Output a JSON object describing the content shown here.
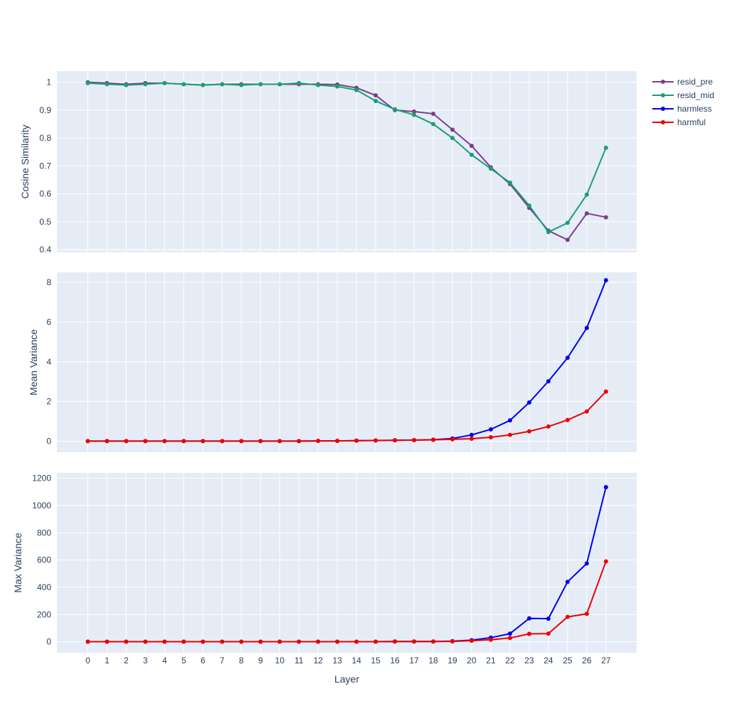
{
  "chart_data": {
    "type": "line",
    "x": [
      0,
      1,
      2,
      3,
      4,
      5,
      6,
      7,
      8,
      9,
      10,
      11,
      12,
      13,
      14,
      15,
      16,
      17,
      18,
      19,
      20,
      21,
      22,
      23,
      24,
      25,
      26,
      27
    ],
    "xlabel": "Layer",
    "legend_position": "top-right",
    "grid": true,
    "subplots": [
      {
        "ylabel": "Cosine Similarity",
        "ylim": [
          0.39,
          1.04
        ],
        "yticks": [
          0.4,
          0.5,
          0.6,
          0.7,
          0.8,
          0.9,
          1
        ],
        "ytick_labels": [
          "0.4",
          "0.5",
          "0.6",
          "0.7",
          "0.8",
          "0.9",
          "1"
        ],
        "series": [
          {
            "name": "resid_pre",
            "color": "#7b3f8c",
            "values": [
              1.0,
              0.997,
              0.993,
              0.997,
              0.997,
              0.993,
              0.99,
              0.993,
              0.993,
              0.993,
              0.993,
              0.993,
              0.993,
              0.992,
              0.98,
              0.953,
              0.9,
              0.895,
              0.887,
              0.83,
              0.772,
              0.695,
              0.635,
              0.55,
              0.468,
              0.435,
              0.53,
              0.516
            ]
          },
          {
            "name": "resid_mid",
            "color": "#1b9e77",
            "values": [
              0.997,
              0.993,
              0.99,
              0.993,
              0.997,
              0.993,
              0.99,
              0.993,
              0.99,
              0.993,
              0.993,
              0.997,
              0.99,
              0.985,
              0.972,
              0.933,
              0.903,
              0.883,
              0.85,
              0.8,
              0.74,
              0.69,
              0.64,
              0.558,
              0.463,
              0.496,
              0.597,
              0.765
            ]
          }
        ]
      },
      {
        "ylabel": "Mean Variance",
        "ylim": [
          -0.55,
          8.5
        ],
        "yticks": [
          0,
          2,
          4,
          6,
          8
        ],
        "ytick_labels": [
          "0",
          "2",
          "4",
          "6",
          "8"
        ],
        "series": [
          {
            "name": "harmless",
            "color": "#0000ee",
            "values": [
              0.01,
              0.01,
              0.01,
              0.01,
              0.01,
              0.01,
              0.01,
              0.01,
              0.01,
              0.01,
              0.01,
              0.01,
              0.02,
              0.02,
              0.03,
              0.04,
              0.05,
              0.06,
              0.08,
              0.14,
              0.32,
              0.6,
              1.05,
              1.95,
              3.02,
              4.2,
              5.7,
              8.1
            ]
          },
          {
            "name": "harmful",
            "color": "#ee0000",
            "values": [
              0.01,
              0.01,
              0.01,
              0.01,
              0.01,
              0.01,
              0.01,
              0.01,
              0.01,
              0.01,
              0.01,
              0.01,
              0.02,
              0.02,
              0.03,
              0.04,
              0.05,
              0.06,
              0.07,
              0.1,
              0.13,
              0.2,
              0.32,
              0.5,
              0.74,
              1.07,
              1.5,
              2.5
            ]
          }
        ]
      },
      {
        "ylabel": "Max Variance",
        "ylim": [
          -80,
          1240
        ],
        "yticks": [
          0,
          200,
          400,
          600,
          800,
          1000,
          1200
        ],
        "ytick_labels": [
          "0",
          "200",
          "400",
          "600",
          "800",
          "1000",
          "1200"
        ],
        "series": [
          {
            "name": "harmless",
            "color": "#0000ee",
            "values": [
              1,
              1,
              1,
              1,
              1,
              1,
              1,
              1,
              1,
              1,
              1,
              1,
              1,
              1,
              1,
              1,
              2,
              2,
              2,
              5,
              12,
              30,
              60,
              172,
              170,
              440,
              575,
              1135
            ]
          },
          {
            "name": "harmful",
            "color": "#ee0000",
            "values": [
              1,
              1,
              1,
              1,
              1,
              1,
              1,
              1,
              1,
              1,
              1,
              1,
              1,
              1,
              1,
              1,
              2,
              2,
              2,
              3,
              8,
              15,
              28,
              58,
              60,
              183,
              205,
              590
            ]
          }
        ]
      }
    ],
    "legend": [
      {
        "name": "resid_pre",
        "color": "#7b3f8c"
      },
      {
        "name": "resid_mid",
        "color": "#1b9e77"
      },
      {
        "name": "harmless",
        "color": "#0000ee"
      },
      {
        "name": "harmful",
        "color": "#ee0000"
      }
    ]
  }
}
